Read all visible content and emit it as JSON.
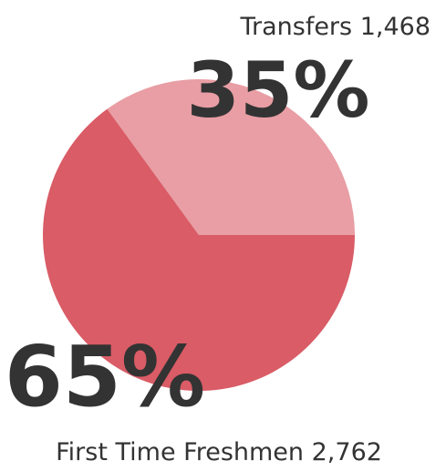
{
  "chart_data": {
    "type": "pie",
    "categories": [
      "Transfers",
      "First Time Freshmen"
    ],
    "values": [
      35,
      65
    ],
    "value_labels": [
      "35%",
      "65%"
    ],
    "counts": [
      1468,
      2762
    ],
    "count_labels": [
      "1,468",
      "2,762"
    ],
    "colors": [
      "#e89ea4",
      "#d95c66"
    ]
  }
}
